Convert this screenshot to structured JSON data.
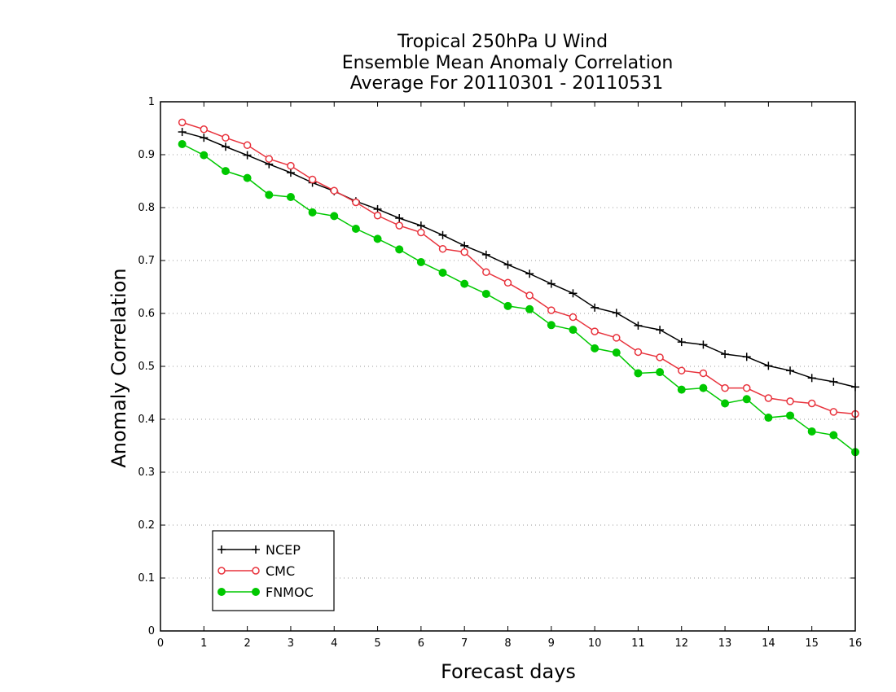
{
  "chart_data": {
    "type": "line",
    "title": [
      "Tropical 250hPa U Wind",
      "Ensemble Mean Anomaly Correlation",
      "Average For 20110301 - 20110531"
    ],
    "xlabel": "Forecast days",
    "ylabel": "Anomaly Correlation",
    "xlim": [
      0,
      16
    ],
    "ylim": [
      0,
      1
    ],
    "xticks": [
      "0",
      "1",
      "2",
      "3",
      "4",
      "5",
      "6",
      "7",
      "8",
      "9",
      "10",
      "11",
      "12",
      "13",
      "14",
      "15",
      "16"
    ],
    "yticks": [
      "0",
      "0.1",
      "0.2",
      "0.3",
      "0.4",
      "0.5",
      "0.6",
      "0.7",
      "0.8",
      "0.9",
      "1"
    ],
    "grid": "horizontal-dotted",
    "legend_position": "bottom-left",
    "x": [
      0.5,
      1,
      1.5,
      2,
      2.5,
      3,
      3.5,
      4,
      4.5,
      5,
      5.5,
      6,
      6.5,
      7,
      7.5,
      8,
      8.5,
      9,
      9.5,
      10,
      10.5,
      11,
      11.5,
      12,
      12.5,
      13,
      13.5,
      14,
      14.5,
      15,
      15.5,
      16
    ],
    "series": [
      {
        "name": "NCEP",
        "color": "#000000",
        "marker": "plus",
        "values": [
          0.943,
          0.932,
          0.915,
          0.899,
          0.882,
          0.866,
          0.847,
          0.831,
          0.812,
          0.797,
          0.78,
          0.766,
          0.748,
          0.728,
          0.711,
          0.692,
          0.675,
          0.656,
          0.638,
          0.611,
          0.601,
          0.577,
          0.569,
          0.546,
          0.541,
          0.523,
          0.518,
          0.501,
          0.492,
          0.478,
          0.471,
          0.461
        ]
      },
      {
        "name": "CMC",
        "color": "#e8323c",
        "marker": "open-circle",
        "values": [
          0.961,
          0.948,
          0.932,
          0.918,
          0.892,
          0.879,
          0.853,
          0.832,
          0.81,
          0.785,
          0.766,
          0.753,
          0.722,
          0.716,
          0.678,
          0.658,
          0.634,
          0.606,
          0.593,
          0.566,
          0.554,
          0.527,
          0.517,
          0.492,
          0.487,
          0.459,
          0.459,
          0.44,
          0.434,
          0.43,
          0.414,
          0.41
        ]
      },
      {
        "name": "FNMOC",
        "color": "#00c800",
        "marker": "filled-circle",
        "values": [
          0.92,
          0.899,
          0.869,
          0.856,
          0.824,
          0.82,
          0.791,
          0.784,
          0.76,
          0.741,
          0.721,
          0.697,
          0.677,
          0.656,
          0.637,
          0.614,
          0.608,
          0.578,
          0.569,
          0.534,
          0.526,
          0.487,
          0.489,
          0.456,
          0.459,
          0.43,
          0.438,
          0.403,
          0.407,
          0.377,
          0.37,
          0.338
        ]
      }
    ]
  }
}
